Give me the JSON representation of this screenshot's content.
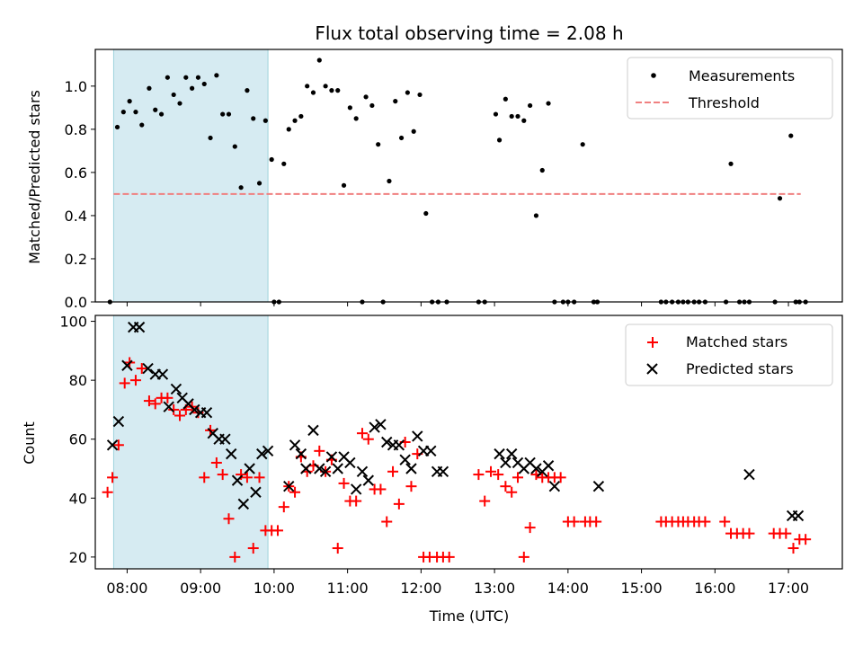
{
  "chart_data": [
    {
      "type": "scatter",
      "title": "Flux total observing time = 2.08 h",
      "xlabel": "",
      "ylabel": "Matched/Predicted stars",
      "ylim": [
        0,
        1.17
      ],
      "xlim": [
        "07:34",
        "17:44"
      ],
      "yticks": [
        "0.0",
        "0.2",
        "0.4",
        "0.6",
        "0.8",
        "1.0"
      ],
      "shaded_interval": [
        "07:49",
        "09:55"
      ],
      "shade_color": "#add8e6",
      "legend_position": "upper right",
      "series": [
        {
          "name": "Measurements",
          "marker": "dot",
          "color": "#000000",
          "x": [
            "07:46",
            "07:52",
            "07:57",
            "08:02",
            "08:07",
            "08:12",
            "08:18",
            "08:23",
            "08:28",
            "08:33",
            "08:38",
            "08:43",
            "08:48",
            "08:53",
            "08:58",
            "09:03",
            "09:08",
            "09:13",
            "09:18",
            "09:23",
            "09:28",
            "09:33",
            "09:38",
            "09:43",
            "09:48",
            "09:53",
            "09:58",
            "10:00",
            "10:04",
            "10:08",
            "10:12",
            "10:17",
            "10:22",
            "10:27",
            "10:32",
            "10:37",
            "10:42",
            "10:47",
            "10:52",
            "10:57",
            "11:02",
            "11:07",
            "11:12",
            "11:15",
            "11:20",
            "11:25",
            "11:29",
            "11:34",
            "11:39",
            "11:44",
            "11:49",
            "11:54",
            "11:59",
            "12:04",
            "12:09",
            "12:14",
            "12:21",
            "12:47",
            "12:52",
            "13:01",
            "13:04",
            "13:09",
            "13:14",
            "13:19",
            "13:24",
            "13:29",
            "13:34",
            "13:39",
            "13:44",
            "13:49",
            "13:56",
            "14:00",
            "14:05",
            "14:12",
            "14:21",
            "14:24",
            "15:16",
            "15:20",
            "15:25",
            "15:30",
            "15:34",
            "15:38",
            "15:43",
            "15:47",
            "15:52",
            "16:09",
            "16:13",
            "16:20",
            "16:24",
            "16:28",
            "16:49",
            "16:53",
            "17:02",
            "17:06",
            "17:09",
            "17:14"
          ],
          "y": [
            0.0,
            0.81,
            0.88,
            0.93,
            0.88,
            0.82,
            0.99,
            0.89,
            0.87,
            1.04,
            0.96,
            0.92,
            1.04,
            0.99,
            1.04,
            1.01,
            0.76,
            1.05,
            0.87,
            0.87,
            0.72,
            0.53,
            0.98,
            0.85,
            0.55,
            0.84,
            0.66,
            0.0,
            0.0,
            0.64,
            0.8,
            0.84,
            0.86,
            1.0,
            0.97,
            1.12,
            1.0,
            0.98,
            0.98,
            0.54,
            0.9,
            0.85,
            0.0,
            0.95,
            0.91,
            0.73,
            0.0,
            0.56,
            0.93,
            0.76,
            0.97,
            0.79,
            0.96,
            0.41,
            0.0,
            0.0,
            0.0,
            0.0,
            0.0,
            0.87,
            0.75,
            0.94,
            0.86,
            0.86,
            0.84,
            0.91,
            0.4,
            0.61,
            0.92,
            0.0,
            0.0,
            0.0,
            0.0,
            0.73,
            0.0,
            0.0,
            0.0,
            0.0,
            0.0,
            0.0,
            0.0,
            0.0,
            0.0,
            0.0,
            0.0,
            0.0,
            0.64,
            0.0,
            0.0,
            0.0,
            0.0,
            0.48,
            0.77,
            0.0,
            0.0,
            0.0
          ]
        },
        {
          "name": "Threshold",
          "line": "dashed",
          "color": "#f08080",
          "x": [
            "07:49",
            "17:10"
          ],
          "y": [
            0.5,
            0.5
          ]
        }
      ]
    },
    {
      "type": "scatter",
      "title": "",
      "xlabel": "Time (UTC)",
      "ylabel": "Count",
      "ylim": [
        16,
        102
      ],
      "xlim": [
        "07:34",
        "17:44"
      ],
      "yticks": [
        "20",
        "40",
        "60",
        "80",
        "100"
      ],
      "xticks": [
        "08:00",
        "09:00",
        "10:00",
        "11:00",
        "12:00",
        "13:00",
        "14:00",
        "15:00",
        "16:00",
        "17:00"
      ],
      "shaded_interval": [
        "07:49",
        "09:55"
      ],
      "shade_color": "#add8e6",
      "legend_position": "upper right",
      "series": [
        {
          "name": "Matched stars",
          "marker": "plus",
          "color": "#ff0000",
          "x": [
            "07:44",
            "07:48",
            "07:53",
            "07:58",
            "08:02",
            "08:07",
            "08:12",
            "08:18",
            "08:23",
            "08:28",
            "08:33",
            "08:38",
            "08:43",
            "08:48",
            "08:53",
            "08:58",
            "09:03",
            "09:08",
            "09:13",
            "09:18",
            "09:23",
            "09:28",
            "09:33",
            "09:38",
            "09:43",
            "09:48",
            "09:53",
            "09:58",
            "10:03",
            "10:08",
            "10:12",
            "10:17",
            "10:22",
            "10:27",
            "10:32",
            "10:37",
            "10:42",
            "10:47",
            "10:52",
            "10:57",
            "11:02",
            "11:07",
            "11:12",
            "11:17",
            "11:22",
            "11:27",
            "11:32",
            "11:37",
            "11:42",
            "11:47",
            "11:52",
            "11:57",
            "12:02",
            "12:07",
            "12:13",
            "12:18",
            "12:23",
            "12:47",
            "12:52",
            "12:57",
            "13:03",
            "13:09",
            "13:14",
            "13:19",
            "13:24",
            "13:29",
            "13:34",
            "13:39",
            "13:44",
            "13:49",
            "13:54",
            "14:00",
            "14:05",
            "14:14",
            "14:18",
            "14:23",
            "15:16",
            "15:20",
            "15:25",
            "15:30",
            "15:34",
            "15:38",
            "15:43",
            "15:47",
            "15:52",
            "16:08",
            "16:13",
            "16:18",
            "16:23",
            "16:28",
            "16:48",
            "16:53",
            "16:58",
            "17:04",
            "17:09",
            "17:14"
          ],
          "y": [
            42,
            47,
            58,
            79,
            86,
            80,
            84,
            73,
            72,
            74,
            74,
            70,
            68,
            70,
            71,
            69,
            47,
            63,
            52,
            48,
            33,
            20,
            48,
            47,
            23,
            47,
            29,
            29,
            29,
            37,
            44,
            42,
            54,
            49,
            51,
            56,
            49,
            53,
            23,
            45,
            39,
            39,
            62,
            60,
            43,
            43,
            32,
            49,
            38,
            59,
            44,
            55,
            20,
            20,
            20,
            20,
            20,
            48,
            39,
            49,
            48,
            44,
            42,
            47,
            20,
            30,
            48,
            47,
            47,
            47,
            47,
            32,
            32,
            32,
            32,
            32,
            32,
            32,
            32,
            32,
            32,
            32,
            32,
            32,
            32,
            32,
            28,
            28,
            28,
            28,
            28,
            28,
            28,
            23,
            26,
            26
          ]
        },
        {
          "name": "Predicted stars",
          "marker": "x",
          "color": "#000000",
          "x": [
            "07:48",
            "07:53",
            "08:00",
            "08:05",
            "08:10",
            "08:17",
            "08:23",
            "08:29",
            "08:34",
            "08:40",
            "08:45",
            "08:50",
            "08:55",
            "09:00",
            "09:05",
            "09:10",
            "09:15",
            "09:20",
            "09:25",
            "09:30",
            "09:35",
            "09:40",
            "09:45",
            "09:50",
            "09:55",
            "10:12",
            "10:17",
            "10:22",
            "10:26",
            "10:32",
            "10:37",
            "10:42",
            "10:47",
            "10:52",
            "10:57",
            "11:02",
            "11:07",
            "11:12",
            "11:17",
            "11:22",
            "11:27",
            "11:32",
            "11:37",
            "11:42",
            "11:47",
            "11:52",
            "11:57",
            "12:02",
            "12:08",
            "12:13",
            "12:18",
            "13:04",
            "13:09",
            "13:14",
            "13:19",
            "13:24",
            "13:29",
            "13:34",
            "13:39",
            "13:44",
            "13:49",
            "14:25",
            "16:28",
            "17:03",
            "17:08"
          ],
          "y": [
            58,
            66,
            85,
            98,
            98,
            84,
            82,
            82,
            71,
            77,
            74,
            72,
            70,
            69,
            69,
            62,
            60,
            60,
            55,
            46,
            38,
            50,
            42,
            55,
            56,
            44,
            58,
            55,
            50,
            63,
            50,
            49,
            54,
            50,
            54,
            52,
            43,
            49,
            46,
            64,
            65,
            59,
            58,
            58,
            53,
            50,
            61,
            56,
            56,
            49,
            49,
            55,
            52,
            55,
            52,
            50,
            52,
            50,
            49,
            51,
            44,
            44,
            48,
            34,
            34
          ]
        }
      ]
    }
  ]
}
